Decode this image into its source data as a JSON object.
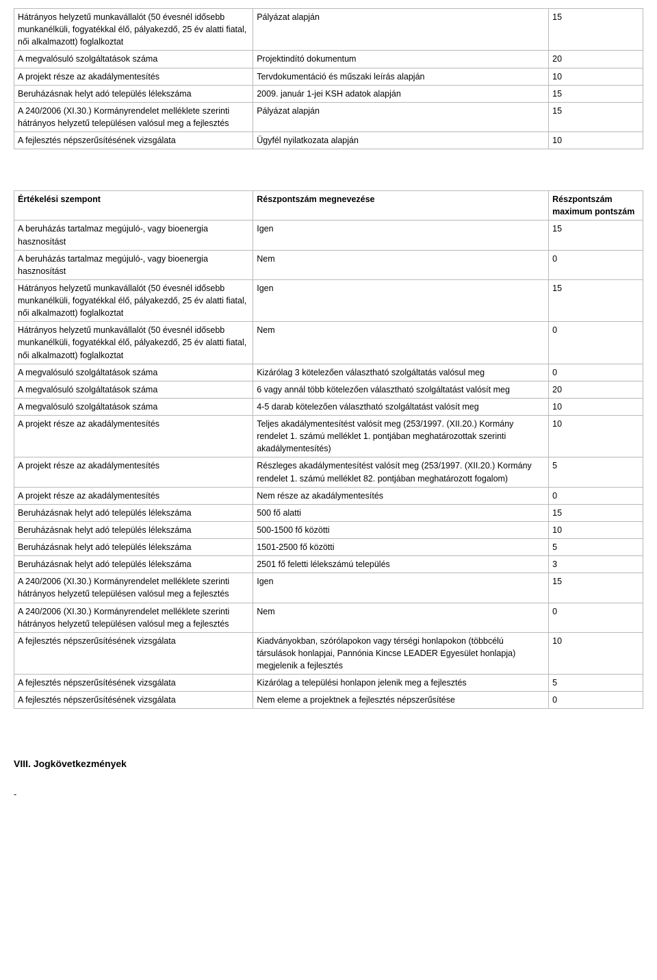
{
  "table1": {
    "rows": [
      {
        "c1": "Hátrányos helyzetű munkavállalót (50 évesnél idősebb munkanélküli, fogyatékkal élő, pályakezdő, 25 év alatti fiatal, női alkalmazott) foglalkoztat",
        "c2": "Pályázat alapján",
        "c3": "15"
      },
      {
        "c1": "A megvalósuló szolgáltatások száma",
        "c2": "Projektindító dokumentum",
        "c3": "20"
      },
      {
        "c1": "A projekt része az akadálymentesítés",
        "c2": "Tervdokumentáció és műszaki leírás alapján",
        "c3": "10"
      },
      {
        "c1": "Beruházásnak helyt adó település lélekszáma",
        "c2": "2009. január 1-jei KSH adatok alapján",
        "c3": "15"
      },
      {
        "c1": "A 240/2006 (XI.30.) Kormányrendelet melléklete szerinti hátrányos helyzetű településen valósul meg a fejlesztés",
        "c2": "Pályázat alapján",
        "c3": "15"
      },
      {
        "c1": "A fejlesztés népszerűsítésének vizsgálata",
        "c2": "Ügyfél nyilatkozata alapján",
        "c3": "10"
      }
    ]
  },
  "table2": {
    "header": {
      "c1": "Értékelési szempont",
      "c2": "Részpontszám megnevezése",
      "c3": "Részpontszám maximum pontszám"
    },
    "rows": [
      {
        "c1": "A beruházás tartalmaz megújuló-, vagy bioenergia hasznosítást",
        "c2": "Igen",
        "c3": "15"
      },
      {
        "c1": "A beruházás tartalmaz megújuló-, vagy bioenergia hasznosítást",
        "c2": "Nem",
        "c3": "0"
      },
      {
        "c1": "Hátrányos helyzetű munkavállalót (50 évesnél idősebb munkanélküli, fogyatékkal élő, pályakezdő, 25 év alatti fiatal, női alkalmazott) foglalkoztat",
        "c2": "Igen",
        "c3": "15"
      },
      {
        "c1": "Hátrányos helyzetű munkavállalót (50 évesnél idősebb munkanélküli, fogyatékkal élő, pályakezdő, 25 év alatti fiatal, női alkalmazott) foglalkoztat",
        "c2": "Nem",
        "c3": "0"
      },
      {
        "c1": "A megvalósuló szolgáltatások száma",
        "c2": "Kizárólag 3 kötelezően választható szolgáltatás valósul meg",
        "c3": "0"
      },
      {
        "c1": "A megvalósuló szolgáltatások száma",
        "c2": "6 vagy annál több kötelezően választható szolgáltatást valósít meg",
        "c3": "20"
      },
      {
        "c1": "A megvalósuló szolgáltatások száma",
        "c2": "4-5 darab kötelezően választható szolgáltatást valósít meg",
        "c3": "10"
      },
      {
        "c1": "A projekt része az akadálymentesítés",
        "c2": "Teljes akadálymentesítést valósít meg (253/1997. (XII.20.) Kormány rendelet 1. számú melléklet 1. pontjában meghatározottak szerinti akadálymentesítés)",
        "c3": "10"
      },
      {
        "c1": "A projekt része az akadálymentesítés",
        "c2": "Részleges akadálymentesítést valósít meg (253/1997. (XII.20.) Kormány rendelet 1. számú melléklet 82. pontjában meghatározott fogalom)",
        "c3": "5"
      },
      {
        "c1": "A projekt része az akadálymentesítés",
        "c2": "Nem része az akadálymentesítés",
        "c3": "0"
      },
      {
        "c1": "Beruházásnak helyt adó település lélekszáma",
        "c2": "500 fő alatti",
        "c3": "15"
      },
      {
        "c1": "Beruházásnak helyt adó település lélekszáma",
        "c2": "500-1500 fő közötti",
        "c3": "10"
      },
      {
        "c1": "Beruházásnak helyt adó település lélekszáma",
        "c2": "1501-2500 fő közötti",
        "c3": "5"
      },
      {
        "c1": "Beruházásnak helyt adó település lélekszáma",
        "c2": "2501 fő feletti lélekszámú település",
        "c3": "3"
      },
      {
        "c1": "A 240/2006 (XI.30.) Kormányrendelet melléklete szerinti hátrányos helyzetű településen valósul meg a fejlesztés",
        "c2": "Igen",
        "c3": "15"
      },
      {
        "c1": "A 240/2006 (XI.30.) Kormányrendelet melléklete szerinti hátrányos helyzetű településen valósul meg a fejlesztés",
        "c2": "Nem",
        "c3": "0"
      },
      {
        "c1": "A fejlesztés népszerűsítésének vizsgálata",
        "c2": "Kiadványokban, szórólapokon vagy térségi honlapokon (többcélú társulások honlapjai, Pannónia Kincse LEADER Egyesület honlapja) megjelenik a fejlesztés",
        "c3": "10"
      },
      {
        "c1": "A fejlesztés népszerűsítésének vizsgálata",
        "c2": "Kizárólag a települési honlapon jelenik meg a fejlesztés",
        "c3": "5"
      },
      {
        "c1": "A fejlesztés népszerűsítésének vizsgálata",
        "c2": "Nem eleme a projektnek a fejlesztés népszerűsítése",
        "c3": "0"
      }
    ]
  },
  "footer": {
    "heading": "VIII. Jogkövetkezmények",
    "dash": "-"
  },
  "style": {
    "border_color": "#b8b8b8",
    "text_color": "#000000",
    "background_color": "#ffffff",
    "font_size_body": 12.5,
    "font_size_heading": 14
  }
}
